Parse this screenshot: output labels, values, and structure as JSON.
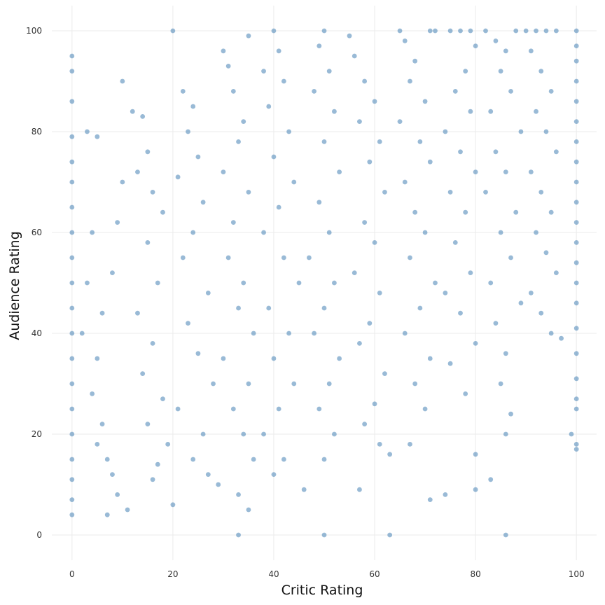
{
  "chart_data": {
    "type": "scatter",
    "title": "",
    "xlabel": "Critic Rating",
    "ylabel": "Audience Rating",
    "xlim": [
      -4,
      104
    ],
    "ylim": [
      -5,
      105
    ],
    "xticks": [
      0,
      20,
      40,
      60,
      80,
      100
    ],
    "yticks": [
      0,
      20,
      40,
      60,
      80,
      100
    ],
    "xtick_labels": [
      "0",
      "20",
      "40",
      "60",
      "80",
      "100"
    ],
    "ytick_labels": [
      "0",
      "20",
      "40",
      "60",
      "80",
      "100"
    ],
    "grid": true,
    "legend": "none",
    "point_color": "#4682b4",
    "point_opacity": 0.55,
    "series": [
      {
        "points": [
          [
            0,
            95
          ],
          [
            0,
            92
          ],
          [
            0,
            86
          ],
          [
            0,
            79
          ],
          [
            0,
            74
          ],
          [
            0,
            70
          ],
          [
            0,
            65
          ],
          [
            0,
            60
          ],
          [
            0,
            55
          ],
          [
            0,
            50
          ],
          [
            0,
            45
          ],
          [
            0,
            40
          ],
          [
            0,
            35
          ],
          [
            0,
            30
          ],
          [
            0,
            25
          ],
          [
            0,
            20
          ],
          [
            0,
            15
          ],
          [
            0,
            11
          ],
          [
            0,
            7
          ],
          [
            0,
            4
          ],
          [
            3,
            80
          ],
          [
            5,
            79
          ],
          [
            4,
            60
          ],
          [
            3,
            50
          ],
          [
            2,
            40
          ],
          [
            5,
            35
          ],
          [
            4,
            28
          ],
          [
            6,
            22
          ],
          [
            5,
            18
          ],
          [
            7,
            15
          ],
          [
            8,
            12
          ],
          [
            9,
            8
          ],
          [
            7,
            4
          ],
          [
            6,
            44
          ],
          [
            8,
            52
          ],
          [
            9,
            62
          ],
          [
            10,
            70
          ],
          [
            11,
            5
          ],
          [
            10,
            90
          ],
          [
            12,
            84
          ],
          [
            14,
            83
          ],
          [
            15,
            76
          ],
          [
            13,
            72
          ],
          [
            16,
            68
          ],
          [
            18,
            64
          ],
          [
            15,
            58
          ],
          [
            17,
            50
          ],
          [
            13,
            44
          ],
          [
            16,
            38
          ],
          [
            14,
            32
          ],
          [
            18,
            27
          ],
          [
            15,
            22
          ],
          [
            19,
            18
          ],
          [
            17,
            14
          ],
          [
            16,
            11
          ],
          [
            20,
            100
          ],
          [
            20,
            6
          ],
          [
            22,
            88
          ],
          [
            24,
            85
          ],
          [
            23,
            80
          ],
          [
            25,
            75
          ],
          [
            21,
            71
          ],
          [
            26,
            66
          ],
          [
            24,
            60
          ],
          [
            22,
            55
          ],
          [
            27,
            48
          ],
          [
            23,
            42
          ],
          [
            25,
            36
          ],
          [
            28,
            30
          ],
          [
            21,
            25
          ],
          [
            26,
            20
          ],
          [
            24,
            15
          ],
          [
            27,
            12
          ],
          [
            29,
            10
          ],
          [
            30,
            96
          ],
          [
            31,
            93
          ],
          [
            32,
            88
          ],
          [
            34,
            82
          ],
          [
            33,
            78
          ],
          [
            30,
            72
          ],
          [
            35,
            68
          ],
          [
            32,
            62
          ],
          [
            31,
            55
          ],
          [
            34,
            50
          ],
          [
            33,
            45
          ],
          [
            36,
            40
          ],
          [
            30,
            35
          ],
          [
            35,
            30
          ],
          [
            32,
            25
          ],
          [
            34,
            20
          ],
          [
            36,
            15
          ],
          [
            33,
            8
          ],
          [
            33,
            0
          ],
          [
            35,
            99
          ],
          [
            35,
            5
          ],
          [
            40,
            100
          ],
          [
            41,
            96
          ],
          [
            38,
            92
          ],
          [
            42,
            90
          ],
          [
            39,
            85
          ],
          [
            43,
            80
          ],
          [
            40,
            75
          ],
          [
            44,
            70
          ],
          [
            41,
            65
          ],
          [
            38,
            60
          ],
          [
            42,
            55
          ],
          [
            45,
            50
          ],
          [
            39,
            45
          ],
          [
            43,
            40
          ],
          [
            40,
            35
          ],
          [
            44,
            30
          ],
          [
            41,
            25
          ],
          [
            38,
            20
          ],
          [
            42,
            15
          ],
          [
            46,
            9
          ],
          [
            40,
            12
          ],
          [
            50,
            100
          ],
          [
            49,
            97
          ],
          [
            51,
            92
          ],
          [
            48,
            88
          ],
          [
            52,
            84
          ],
          [
            50,
            78
          ],
          [
            53,
            72
          ],
          [
            49,
            66
          ],
          [
            51,
            60
          ],
          [
            47,
            55
          ],
          [
            52,
            50
          ],
          [
            50,
            45
          ],
          [
            48,
            40
          ],
          [
            53,
            35
          ],
          [
            51,
            30
          ],
          [
            49,
            25
          ],
          [
            52,
            20
          ],
          [
            50,
            15
          ],
          [
            50,
            0
          ],
          [
            55,
            99
          ],
          [
            57,
            9
          ],
          [
            56,
            95
          ],
          [
            58,
            90
          ],
          [
            60,
            86
          ],
          [
            57,
            82
          ],
          [
            61,
            78
          ],
          [
            59,
            74
          ],
          [
            62,
            68
          ],
          [
            58,
            62
          ],
          [
            60,
            58
          ],
          [
            56,
            52
          ],
          [
            61,
            48
          ],
          [
            59,
            42
          ],
          [
            57,
            38
          ],
          [
            62,
            32
          ],
          [
            60,
            26
          ],
          [
            58,
            22
          ],
          [
            61,
            18
          ],
          [
            63,
            16
          ],
          [
            63,
            0
          ],
          [
            65,
            100
          ],
          [
            66,
            98
          ],
          [
            68,
            94
          ],
          [
            67,
            90
          ],
          [
            70,
            86
          ],
          [
            65,
            82
          ],
          [
            69,
            78
          ],
          [
            71,
            74
          ],
          [
            66,
            70
          ],
          [
            68,
            64
          ],
          [
            70,
            60
          ],
          [
            67,
            55
          ],
          [
            72,
            50
          ],
          [
            69,
            45
          ],
          [
            66,
            40
          ],
          [
            71,
            35
          ],
          [
            68,
            30
          ],
          [
            70,
            25
          ],
          [
            67,
            18
          ],
          [
            71,
            7
          ],
          [
            74,
            8
          ],
          [
            71,
            100
          ],
          [
            72,
            100
          ],
          [
            75,
            100
          ],
          [
            77,
            100
          ],
          [
            79,
            100
          ],
          [
            80,
            97
          ],
          [
            78,
            92
          ],
          [
            76,
            88
          ],
          [
            79,
            84
          ],
          [
            74,
            80
          ],
          [
            77,
            76
          ],
          [
            80,
            72
          ],
          [
            75,
            68
          ],
          [
            78,
            64
          ],
          [
            76,
            58
          ],
          [
            79,
            52
          ],
          [
            74,
            48
          ],
          [
            77,
            44
          ],
          [
            80,
            38
          ],
          [
            75,
            34
          ],
          [
            78,
            28
          ],
          [
            80,
            16
          ],
          [
            80,
            9
          ],
          [
            83,
            11
          ],
          [
            82,
            100
          ],
          [
            84,
            98
          ],
          [
            86,
            96
          ],
          [
            88,
            100
          ],
          [
            85,
            92
          ],
          [
            87,
            88
          ],
          [
            83,
            84
          ],
          [
            89,
            80
          ],
          [
            84,
            76
          ],
          [
            86,
            72
          ],
          [
            82,
            68
          ],
          [
            88,
            64
          ],
          [
            85,
            60
          ],
          [
            87,
            55
          ],
          [
            83,
            50
          ],
          [
            89,
            46
          ],
          [
            84,
            42
          ],
          [
            86,
            36
          ],
          [
            85,
            30
          ],
          [
            87,
            24
          ],
          [
            86,
            20
          ],
          [
            86,
            0
          ],
          [
            90,
            100
          ],
          [
            92,
            100
          ],
          [
            94,
            100
          ],
          [
            96,
            100
          ],
          [
            91,
            96
          ],
          [
            93,
            92
          ],
          [
            95,
            88
          ],
          [
            92,
            84
          ],
          [
            94,
            80
          ],
          [
            96,
            76
          ],
          [
            91,
            72
          ],
          [
            93,
            68
          ],
          [
            95,
            64
          ],
          [
            92,
            60
          ],
          [
            94,
            56
          ],
          [
            96,
            52
          ],
          [
            91,
            48
          ],
          [
            93,
            44
          ],
          [
            95,
            40
          ],
          [
            97,
            39
          ],
          [
            99,
            20
          ],
          [
            100,
            100
          ],
          [
            100,
            97
          ],
          [
            100,
            94
          ],
          [
            100,
            90
          ],
          [
            100,
            86
          ],
          [
            100,
            82
          ],
          [
            100,
            78
          ],
          [
            100,
            74
          ],
          [
            100,
            70
          ],
          [
            100,
            66
          ],
          [
            100,
            62
          ],
          [
            100,
            58
          ],
          [
            100,
            54
          ],
          [
            100,
            50
          ],
          [
            100,
            46
          ],
          [
            100,
            41
          ],
          [
            100,
            36
          ],
          [
            100,
            31
          ],
          [
            100,
            27
          ],
          [
            100,
            25
          ],
          [
            100,
            18
          ],
          [
            100,
            17
          ]
        ]
      }
    ]
  }
}
